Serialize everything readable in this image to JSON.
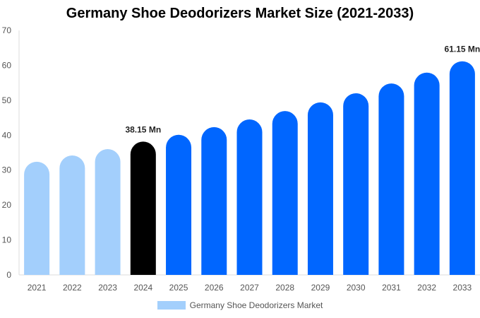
{
  "chart_data": {
    "type": "bar",
    "title": "Germany Shoe Deodorizers Market Size (2021-2033)",
    "categories": [
      "2021",
      "2022",
      "2023",
      "2024",
      "2025",
      "2026",
      "2027",
      "2028",
      "2029",
      "2030",
      "2031",
      "2032",
      "2033"
    ],
    "series": [
      {
        "name": "Germany Shoe Deodorizers Market",
        "values": [
          32.4,
          34.2,
          36.0,
          38.15,
          40.1,
          42.3,
          44.5,
          46.9,
          49.4,
          52.0,
          54.8,
          57.9,
          61.15
        ]
      }
    ],
    "data_labels": [
      {
        "category": "2024",
        "text": "38.15 Mn"
      },
      {
        "category": "2033",
        "text": "61.15 Mn"
      }
    ],
    "ylim": [
      0,
      70
    ],
    "yticks": [
      0,
      10,
      20,
      30,
      40,
      50,
      60,
      70
    ],
    "xlabel": "",
    "ylabel": "",
    "grid": false,
    "legend": "bottom",
    "colors": {
      "historical": "#a3cffc",
      "current": "#000000",
      "forecast": "#0066ff"
    }
  }
}
